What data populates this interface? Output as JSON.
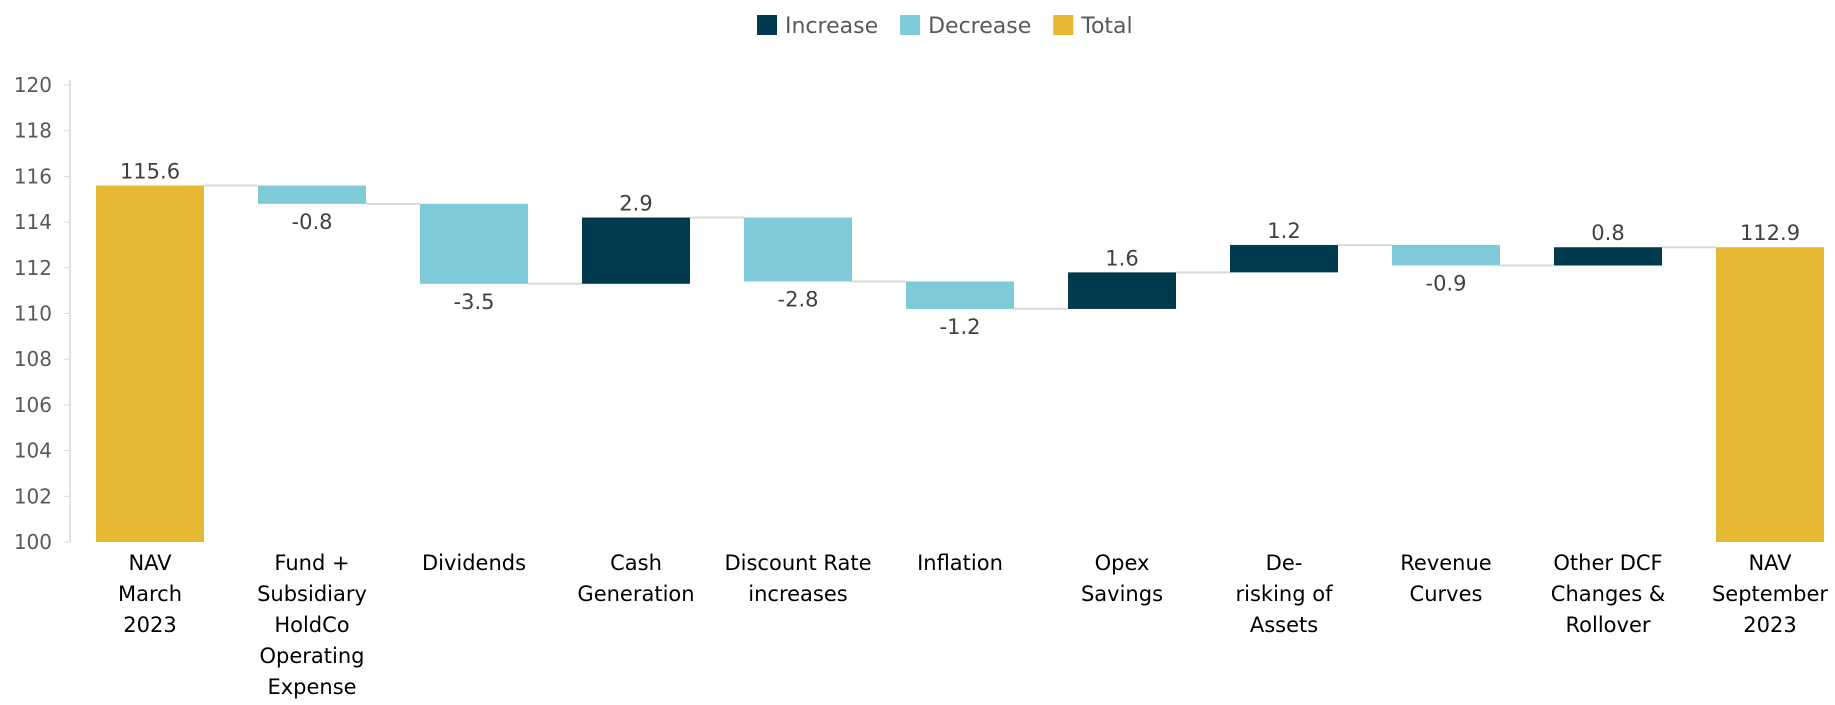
{
  "chart_data": {
    "type": "waterfall",
    "categories": [
      "NAV\nMarch\n2023",
      "Fund +\nSubsidiary\nHoldCo\nOperating\nExpense",
      "Dividends",
      "Cash\nGeneration",
      "Discount Rate\nincreases",
      "Inflation",
      "Opex\nSavings",
      "De-\nrisking of\nAssets",
      "Revenue\nCurves",
      "Other DCF\nChanges &\nRollover",
      "NAV\nSeptember\n2023"
    ],
    "values": [
      115.6,
      -0.8,
      -3.5,
      2.9,
      -2.8,
      -1.2,
      1.6,
      1.2,
      -0.9,
      0.8,
      112.9
    ],
    "measures": [
      "total",
      "relative",
      "relative",
      "relative",
      "relative",
      "relative",
      "relative",
      "relative",
      "relative",
      "relative",
      "total"
    ],
    "legend": [
      {
        "name": "Increase",
        "color": "#003a4d"
      },
      {
        "name": "Decrease",
        "color": "#7ecad8"
      },
      {
        "name": "Total",
        "color": "#e5b932"
      }
    ],
    "ylim": [
      100,
      120
    ],
    "yticks": [
      100,
      102,
      104,
      106,
      108,
      110,
      112,
      114,
      116,
      118,
      120
    ]
  }
}
